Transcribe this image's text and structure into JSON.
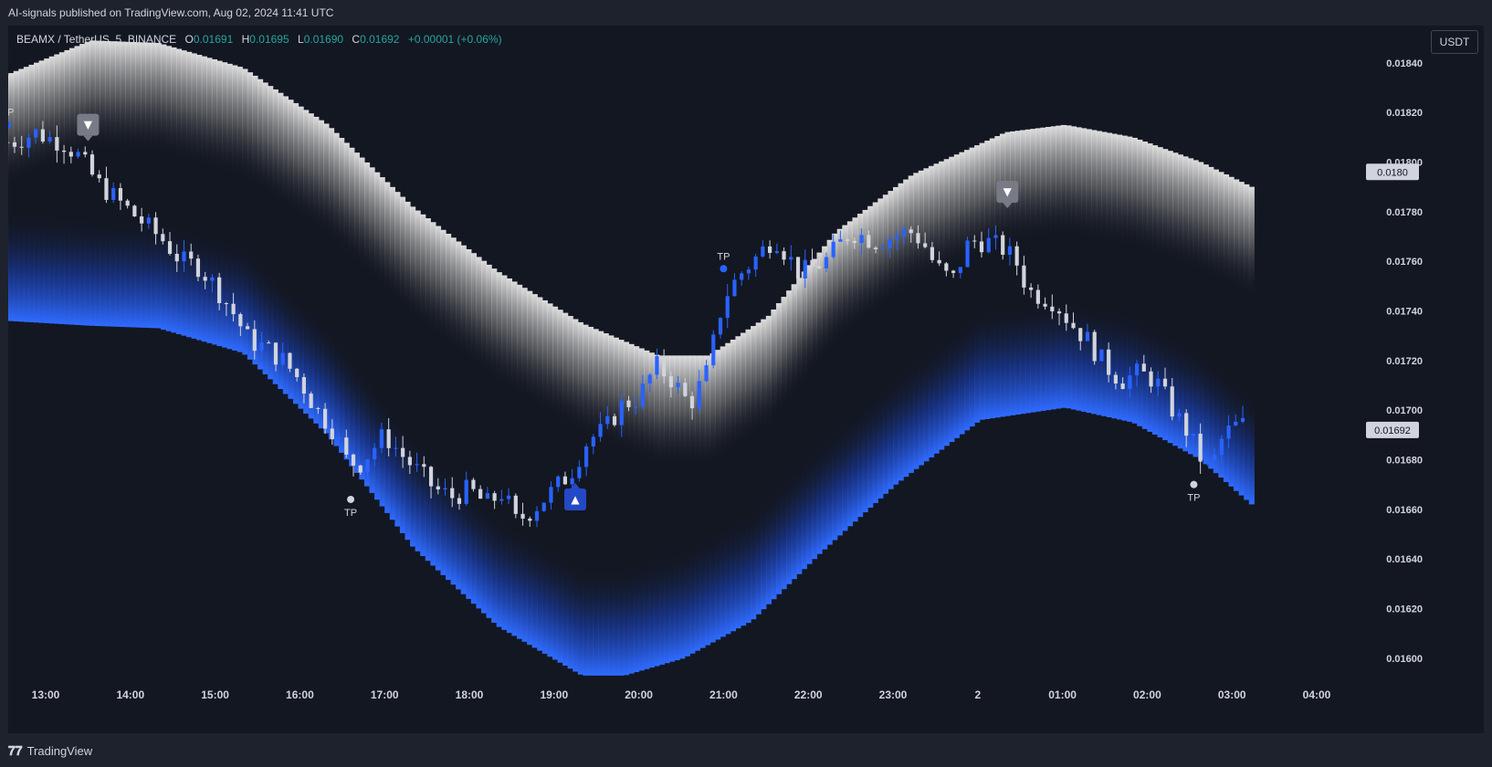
{
  "header": {
    "published": "AI-signals published on TradingView.com, Aug 02, 2024 11:41 UTC"
  },
  "legend": {
    "symbol": "BEAMX / TetherUS, 5, BINANCE",
    "o_label": "O",
    "o": "0.01691",
    "h_label": "H",
    "h": "0.01695",
    "l_label": "L",
    "l": "0.01690",
    "c_label": "C",
    "c": "0.01692",
    "change": "+0.00001 (+0.06%)"
  },
  "currency": "USDT",
  "footer": {
    "brand": "TradingView"
  },
  "colors": {
    "background": "#131722",
    "bull": "#2962ff",
    "bear": "#d1d4dc",
    "upper_band": "#e0e0e0",
    "lower_band": "#2962ff",
    "legend_value": "#26a69a"
  },
  "chart_data": {
    "type": "candlestick",
    "ylim": [
      0.0159,
      0.01855
    ],
    "y_ticks": [
      "0.01840",
      "0.01820",
      "0.01800",
      "0.01780",
      "0.01760",
      "0.01740",
      "0.01720",
      "0.01700",
      "0.01680",
      "0.01660",
      "0.01640",
      "0.01620",
      "0.01600"
    ],
    "x_ticks": [
      "13:00",
      "14:00",
      "15:00",
      "16:00",
      "17:00",
      "18:00",
      "19:00",
      "20:00",
      "21:00",
      "22:00",
      "23:00",
      "2",
      "01:00",
      "02:00",
      "03:00",
      "04:00"
    ],
    "price_tags": [
      {
        "label": "0.0180",
        "value": 0.01796
      },
      {
        "label": "0.01692",
        "value": 0.01692
      }
    ],
    "close_path": [
      [
        12.6,
        0.01808
      ],
      [
        12.9,
        0.01812
      ],
      [
        13.0,
        0.0181
      ],
      [
        13.2,
        0.01808
      ],
      [
        13.4,
        0.01802
      ],
      [
        13.6,
        0.01792
      ],
      [
        13.8,
        0.01786
      ],
      [
        14.0,
        0.0178
      ],
      [
        14.2,
        0.01774
      ],
      [
        14.4,
        0.01768
      ],
      [
        14.6,
        0.0176
      ],
      [
        14.8,
        0.01758
      ],
      [
        15.0,
        0.0175
      ],
      [
        15.2,
        0.0174
      ],
      [
        15.4,
        0.01728
      ],
      [
        15.6,
        0.01725
      ],
      [
        15.8,
        0.0172
      ],
      [
        16.0,
        0.01712
      ],
      [
        16.2,
        0.017
      ],
      [
        16.4,
        0.01692
      ],
      [
        16.55,
        0.0168
      ],
      [
        16.7,
        0.01678
      ],
      [
        17.0,
        0.0169
      ],
      [
        17.2,
        0.01682
      ],
      [
        17.4,
        0.01675
      ],
      [
        17.6,
        0.01668
      ],
      [
        17.8,
        0.01665
      ],
      [
        18.0,
        0.01668
      ],
      [
        18.2,
        0.01662
      ],
      [
        18.4,
        0.01667
      ],
      [
        18.55,
        0.01655
      ],
      [
        18.75,
        0.0166
      ],
      [
        19.0,
        0.01668
      ],
      [
        19.2,
        0.01675
      ],
      [
        19.4,
        0.01688
      ],
      [
        19.6,
        0.01692
      ],
      [
        19.8,
        0.01702
      ],
      [
        20.0,
        0.01705
      ],
      [
        20.2,
        0.01718
      ],
      [
        20.4,
        0.01712
      ],
      [
        20.6,
        0.01702
      ],
      [
        20.8,
        0.01715
      ],
      [
        20.9,
        0.0173
      ],
      [
        21.0,
        0.01745
      ],
      [
        21.2,
        0.01755
      ],
      [
        21.4,
        0.01762
      ],
      [
        21.6,
        0.0177
      ],
      [
        21.9,
        0.01755
      ],
      [
        22.2,
        0.0176
      ],
      [
        22.5,
        0.01772
      ],
      [
        22.8,
        0.01768
      ],
      [
        23.0,
        0.0177
      ],
      [
        23.2,
        0.01772
      ],
      [
        23.35,
        0.01768
      ],
      [
        23.5,
        0.01758
      ],
      [
        23.7,
        0.01752
      ],
      [
        23.9,
        0.01768
      ],
      [
        24.1,
        0.01768
      ],
      [
        24.3,
        0.01765
      ],
      [
        24.45,
        0.0176
      ],
      [
        24.6,
        0.01748
      ],
      [
        24.9,
        0.01744
      ],
      [
        25.1,
        0.01735
      ],
      [
        25.3,
        0.01728
      ],
      [
        25.5,
        0.01718
      ],
      [
        25.7,
        0.01712
      ],
      [
        25.9,
        0.01715
      ],
      [
        26.1,
        0.01712
      ],
      [
        26.3,
        0.017
      ],
      [
        26.5,
        0.0169
      ],
      [
        26.6,
        0.01682
      ],
      [
        26.75,
        0.01676
      ],
      [
        26.9,
        0.0169
      ],
      [
        27.1,
        0.01695
      ],
      [
        27.2,
        0.01692
      ]
    ],
    "upper_band_top": [
      [
        12.5,
        0.01835
      ],
      [
        13.5,
        0.01849
      ],
      [
        14.3,
        0.01848
      ],
      [
        15.3,
        0.01838
      ],
      [
        16.3,
        0.01815
      ],
      [
        17.3,
        0.01782
      ],
      [
        18.3,
        0.01756
      ],
      [
        19.3,
        0.01735
      ],
      [
        20.2,
        0.01722
      ],
      [
        20.8,
        0.01722
      ],
      [
        21.5,
        0.01738
      ],
      [
        22.3,
        0.01772
      ],
      [
        23.2,
        0.01795
      ],
      [
        24.3,
        0.01812
      ],
      [
        25.0,
        0.01815
      ],
      [
        25.8,
        0.0181
      ],
      [
        26.6,
        0.018
      ],
      [
        27.2,
        0.0179
      ]
    ],
    "upper_band_width": 0.00045,
    "lower_band_edge": [
      [
        12.5,
        0.01736
      ],
      [
        13.5,
        0.01734
      ],
      [
        14.3,
        0.01733
      ],
      [
        15.3,
        0.01723
      ],
      [
        16.3,
        0.0169
      ],
      [
        17.3,
        0.01645
      ],
      [
        18.3,
        0.01613
      ],
      [
        19.3,
        0.01593
      ],
      [
        19.8,
        0.01593
      ],
      [
        20.5,
        0.016
      ],
      [
        21.3,
        0.01615
      ],
      [
        22.1,
        0.01642
      ],
      [
        23.0,
        0.0167
      ],
      [
        24.0,
        0.01696
      ],
      [
        25.0,
        0.01701
      ],
      [
        25.8,
        0.01695
      ],
      [
        26.6,
        0.0168
      ],
      [
        27.2,
        0.01662
      ]
    ],
    "lower_band_width": 0.00045,
    "signals": [
      {
        "type": "sell",
        "x": 13.5,
        "y": 0.01815,
        "label": "▼"
      },
      {
        "type": "sell",
        "x": 24.35,
        "y": 0.01788,
        "label": "▼"
      },
      {
        "type": "buy",
        "x": 19.25,
        "y": 0.01664,
        "label": "▲"
      }
    ],
    "tp_markers": [
      {
        "x": 12.55,
        "y": 0.01815,
        "label": "TP",
        "position": "above",
        "color": "#2962ff"
      },
      {
        "x": 16.6,
        "y": 0.01664,
        "label": "TP",
        "position": "below",
        "color": "#d1d4dc"
      },
      {
        "x": 21.0,
        "y": 0.01757,
        "label": "TP",
        "position": "above",
        "color": "#2962ff"
      },
      {
        "x": 26.55,
        "y": 0.0167,
        "label": "TP",
        "position": "below",
        "color": "#d1d4dc"
      }
    ]
  }
}
